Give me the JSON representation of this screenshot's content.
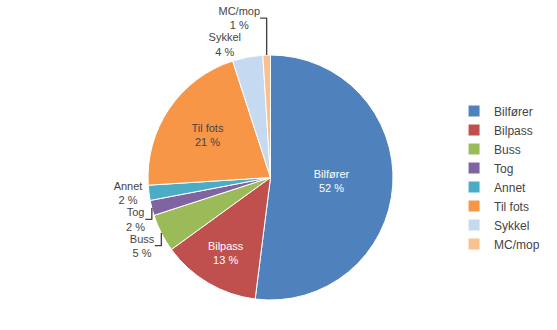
{
  "chart_data": {
    "type": "pie",
    "categories": [
      "Bilfører",
      "Bilpass",
      "Buss",
      "Tog",
      "Annet",
      "Til fots",
      "Sykkel",
      "MC/mop"
    ],
    "values": [
      52,
      13,
      5,
      2,
      2,
      21,
      4,
      1
    ],
    "value_labels": [
      "52 %",
      "13 %",
      "5 %",
      "2 %",
      "2 %",
      "21 %",
      "4 %",
      "1 %"
    ],
    "colors": [
      "#4F81BD",
      "#C0504D",
      "#9BBB59",
      "#8064A2",
      "#4BACC6",
      "#F79646",
      "#C5D9F1",
      "#FAC090"
    ],
    "data_labels": true,
    "legend": "right"
  }
}
